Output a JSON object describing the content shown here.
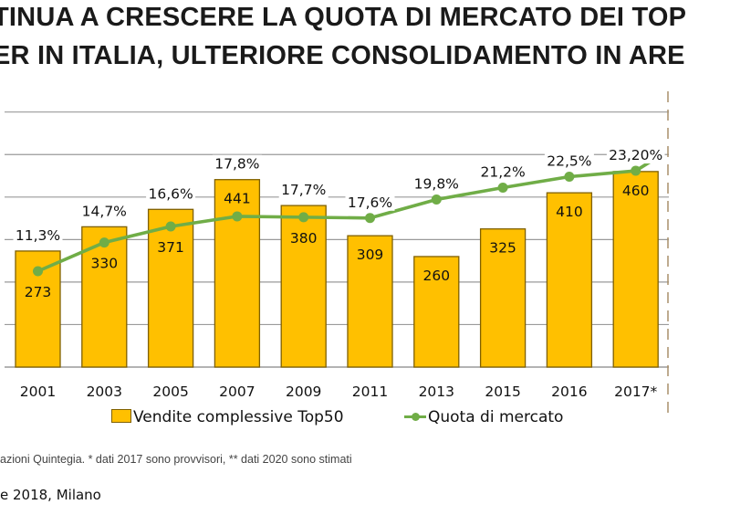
{
  "title": {
    "line1": "TINUA A CRESCERE LA QUOTA DI MERCATO DEI TOP",
    "line2": "ER IN ITALIA, ULTERIORE CONSOLIDAMENTO IN ARE"
  },
  "chart_data": {
    "type": "bar+line",
    "categories": [
      "2001",
      "2003",
      "2005",
      "2007",
      "2009",
      "2011",
      "2013",
      "2015",
      "2016",
      "2017*"
    ],
    "series": [
      {
        "name": "Vendite complessive Top50",
        "type": "bar",
        "axis": "left",
        "values": [
          273,
          330,
          371,
          441,
          380,
          309,
          260,
          325,
          410,
          460
        ],
        "labels": [
          "273",
          "330",
          "371",
          "441",
          "380",
          "309",
          "260",
          "325",
          "410",
          "460"
        ],
        "color": "#FFC000",
        "border_color": "#7F6000"
      },
      {
        "name": "Quota di mercato",
        "type": "line",
        "axis": "right",
        "values": [
          11.3,
          14.7,
          16.6,
          17.8,
          17.7,
          17.6,
          19.8,
          21.2,
          22.5,
          23.2
        ],
        "labels": [
          "11,3%",
          "14,7%",
          "16,6%",
          "17,8%",
          "17,7%",
          "17,6%",
          "19,8%",
          "21,2%",
          "22,5%",
          "23,20%"
        ],
        "color": "#70AD47",
        "continues_beyond_last_point": true
      }
    ],
    "left_axis": {
      "range": [
        0,
        600
      ],
      "gridlines": [
        100,
        200,
        300,
        400,
        500,
        600
      ],
      "tick_labels_visible": false
    },
    "right_axis": {
      "range_percent": [
        0,
        40
      ],
      "tick_labels_visible": false
    },
    "grid": true,
    "legend": {
      "position": "bottom",
      "entries": [
        "Vendite complessive Top50",
        "Quota di mercato"
      ]
    }
  },
  "footnote": "azioni Quintegia. * dati 2017 sono provvisori, ** dati 2020 sono stimati",
  "footer": "e 2018, Milano"
}
